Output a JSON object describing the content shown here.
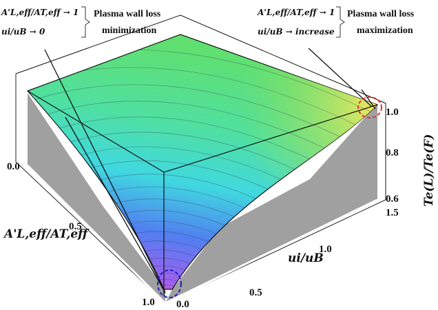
{
  "chart_data": {
    "type": "surface3d",
    "title": "",
    "x_axis": {
      "label": "A'L,eff/AT,eff",
      "range": [
        0.0,
        1.0
      ],
      "ticks": [
        "0.0",
        "0.5",
        "1.0"
      ]
    },
    "y_axis": {
      "label": "ui/uB",
      "range": [
        0.0,
        1.5
      ],
      "ticks": [
        "0.0",
        "0.5",
        "1.0",
        "1.5"
      ]
    },
    "z_axis": {
      "label": "Te(L)/Te(F)",
      "range": [
        0.6,
        1.05
      ],
      "ticks": [
        "0.6",
        "0.8",
        "1.0"
      ]
    },
    "colormap": [
      "#e060a0",
      "#a060f0",
      "#5080f0",
      "#40d8e0",
      "#50e080",
      "#90e060",
      "#f0e860"
    ],
    "annotations": [
      {
        "condition_1": "A'L,eff/AT,eff → 1",
        "condition_2": "ui/uB → 0",
        "result_1": "Plasma wall loss",
        "result_2": "minimization",
        "marker_color": "#2020c0"
      },
      {
        "condition_1": "A'L,eff/AT,eff → 1",
        "condition_2": "ui/uB → increase",
        "result_1": "Plasma wall loss",
        "result_2": "maximization",
        "marker_color": "#e03030"
      }
    ]
  }
}
